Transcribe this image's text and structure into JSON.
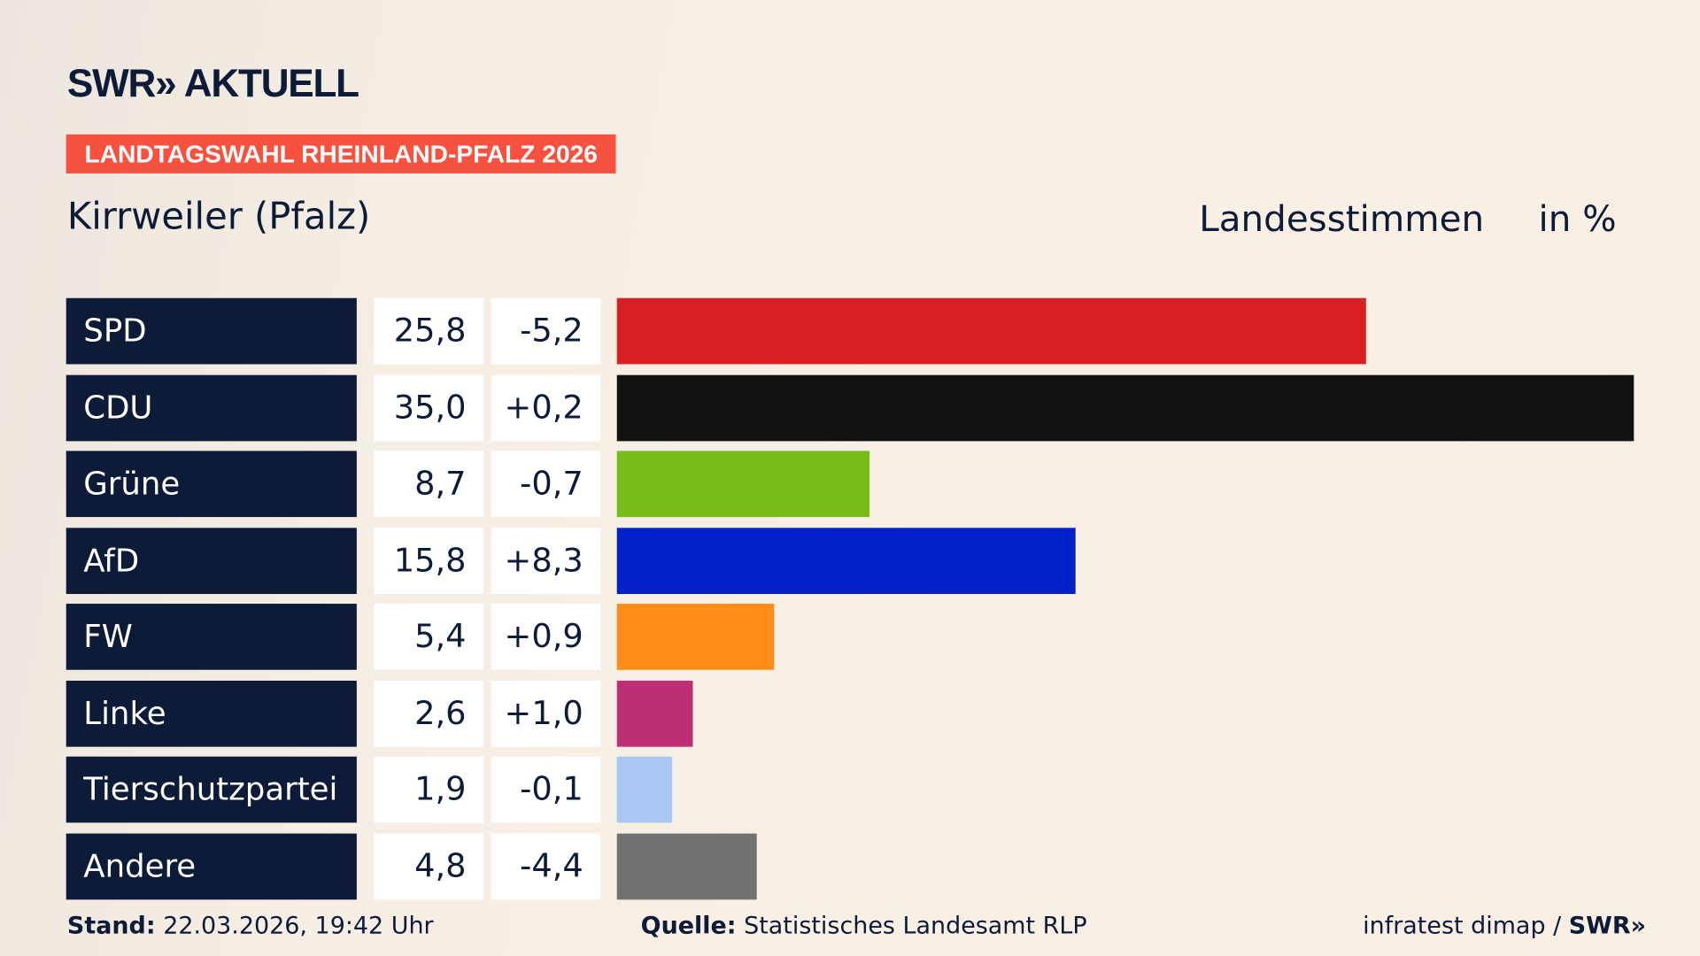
{
  "logo": "SWR» AKTUELL",
  "tag": "LANDTAGSWAHL RHEINLAND-PFALZ 2026",
  "place": "Kirrweiler (Pfalz)",
  "header": {
    "measure": "Landesstimmen",
    "unit": "in %"
  },
  "footer": {
    "stand_label": "Stand:",
    "stand_value": "22.03.2026, 19:42 Uhr",
    "quelle_label": "Quelle:",
    "quelle_value": "Statistisches Landesamt RLP",
    "credit": "infratest dimap / ",
    "credit_logo": "SWR»"
  },
  "chart_data": {
    "type": "bar",
    "orientation": "horizontal",
    "xlim": [
      0,
      35.0
    ],
    "categories": [
      "SPD",
      "CDU",
      "Grüne",
      "AfD",
      "FW",
      "Linke",
      "Tierschutzpartei",
      "Andere"
    ],
    "values": [
      25.8,
      35.0,
      8.7,
      15.8,
      5.4,
      2.6,
      1.9,
      4.8
    ],
    "value_labels": [
      "25,8",
      "35,0",
      "8,7",
      "15,8",
      "5,4",
      "2,6",
      "1,9",
      "4,8"
    ],
    "diff_labels": [
      "-5,2",
      "+0,2",
      "-0,7",
      "+8,3",
      "+0,9",
      "+1,0",
      "-0,1",
      "-4,4"
    ],
    "colors": [
      "#d81f21",
      "#121212",
      "#78bc1b",
      "#0021c8",
      "#ff8c17",
      "#bd2e74",
      "#a9c8f1",
      "#707173"
    ]
  }
}
